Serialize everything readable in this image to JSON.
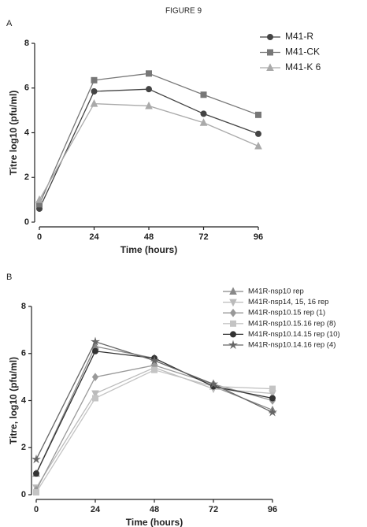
{
  "figure_title": "FIGURE 9",
  "chart_data": [
    {
      "type": "line",
      "panel": "A",
      "x_label": "Time (hours)",
      "y_label": "Titre log10 (pfu/ml)",
      "x": [
        0,
        24,
        48,
        72,
        96
      ],
      "xlim": [
        0,
        96
      ],
      "xticks": [
        0,
        24,
        48,
        72,
        96
      ],
      "ylim": [
        0,
        8
      ],
      "yticks": [
        0,
        2,
        4,
        6,
        8
      ],
      "series": [
        {
          "name": "M41-R",
          "color": "#444444",
          "marker": "circle",
          "values": [
            0.6,
            5.85,
            5.95,
            4.85,
            3.95
          ]
        },
        {
          "name": "M41-CK",
          "color": "#777777",
          "marker": "square",
          "values": [
            0.8,
            6.35,
            6.65,
            5.7,
            4.8
          ]
        },
        {
          "name": "M41-K 6",
          "color": "#aaaaaa",
          "marker": "triangle",
          "values": [
            1.0,
            5.3,
            5.2,
            4.45,
            3.4
          ]
        }
      ]
    },
    {
      "type": "line",
      "panel": "B",
      "x_label": "Time (hours)",
      "y_label": "Titre, log10 (pfu/ml)",
      "x": [
        0,
        24,
        48,
        72,
        96
      ],
      "xlim": [
        0,
        96
      ],
      "xticks": [
        0,
        24,
        48,
        72,
        96
      ],
      "ylim": [
        0,
        8
      ],
      "yticks": [
        0,
        2,
        4,
        6,
        8
      ],
      "series": [
        {
          "name": "M41R-nsp10 rep",
          "color": "#888888",
          "marker": "triangle",
          "values": [
            0.9,
            6.3,
            5.8,
            4.6,
            3.6
          ]
        },
        {
          "name": "M41R-nsp14, 15, 16 rep",
          "color": "#bbbbbb",
          "marker": "down-triangle",
          "values": [
            0.3,
            4.3,
            5.4,
            4.5,
            4.3
          ]
        },
        {
          "name": "M41R-nsp10.15 rep (1)",
          "color": "#999999",
          "marker": "diamond",
          "values": [
            0.2,
            5.0,
            5.5,
            4.7,
            4.0
          ]
        },
        {
          "name": "M41R-nsp10.15.16 rep (8)",
          "color": "#c4c4c4",
          "marker": "square",
          "values": [
            0.1,
            4.1,
            5.3,
            4.6,
            4.5
          ]
        },
        {
          "name": "M41R-nsp10.14.15 rep (10)",
          "color": "#333333",
          "marker": "circle",
          "values": [
            0.9,
            6.1,
            5.8,
            4.6,
            4.1
          ]
        },
        {
          "name": "M41R-nsp10.14.16 rep (4)",
          "color": "#666666",
          "marker": "star",
          "values": [
            1.5,
            6.5,
            5.7,
            4.7,
            3.5
          ]
        }
      ]
    }
  ]
}
